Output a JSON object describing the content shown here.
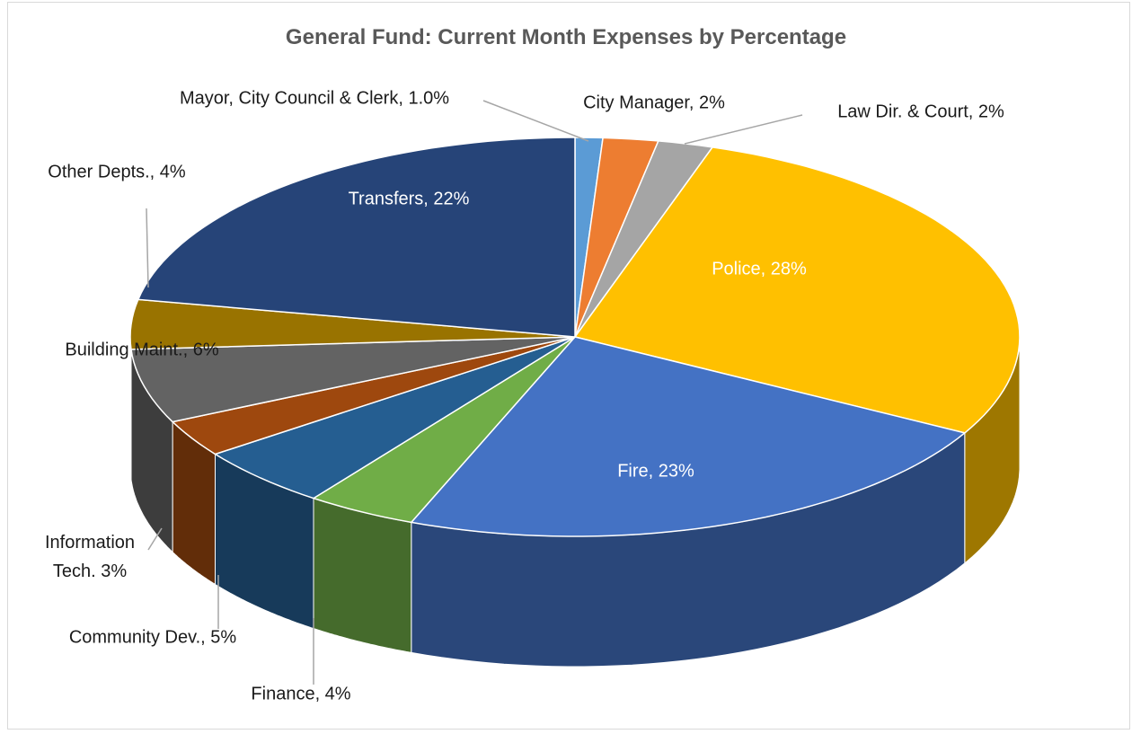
{
  "chart_data": {
    "type": "pie",
    "title": "General Fund: Current Month Expenses by Percentage",
    "categories": [
      "Mayor, City Council & Clerk, 1.0%",
      "City Manager, 2%",
      "Law Dir. & Court, 2%",
      "Police, 28%",
      "Fire, 23%",
      "Finance, 4%",
      "Community Dev., 5%",
      "Information Tech. 3%",
      "Building Maint., 6%",
      "Other Depts., 4%",
      "Transfers, 22%"
    ],
    "values": [
      1.0,
      2,
      2,
      28,
      23,
      4,
      5,
      3,
      6,
      4,
      22
    ],
    "colors": [
      "#5b9bd5",
      "#ed7d31",
      "#a5a5a5",
      "#ffc000",
      "#4472c4",
      "#70ad47",
      "#255e91",
      "#9e480e",
      "#636363",
      "#997300",
      "#264478"
    ]
  }
}
